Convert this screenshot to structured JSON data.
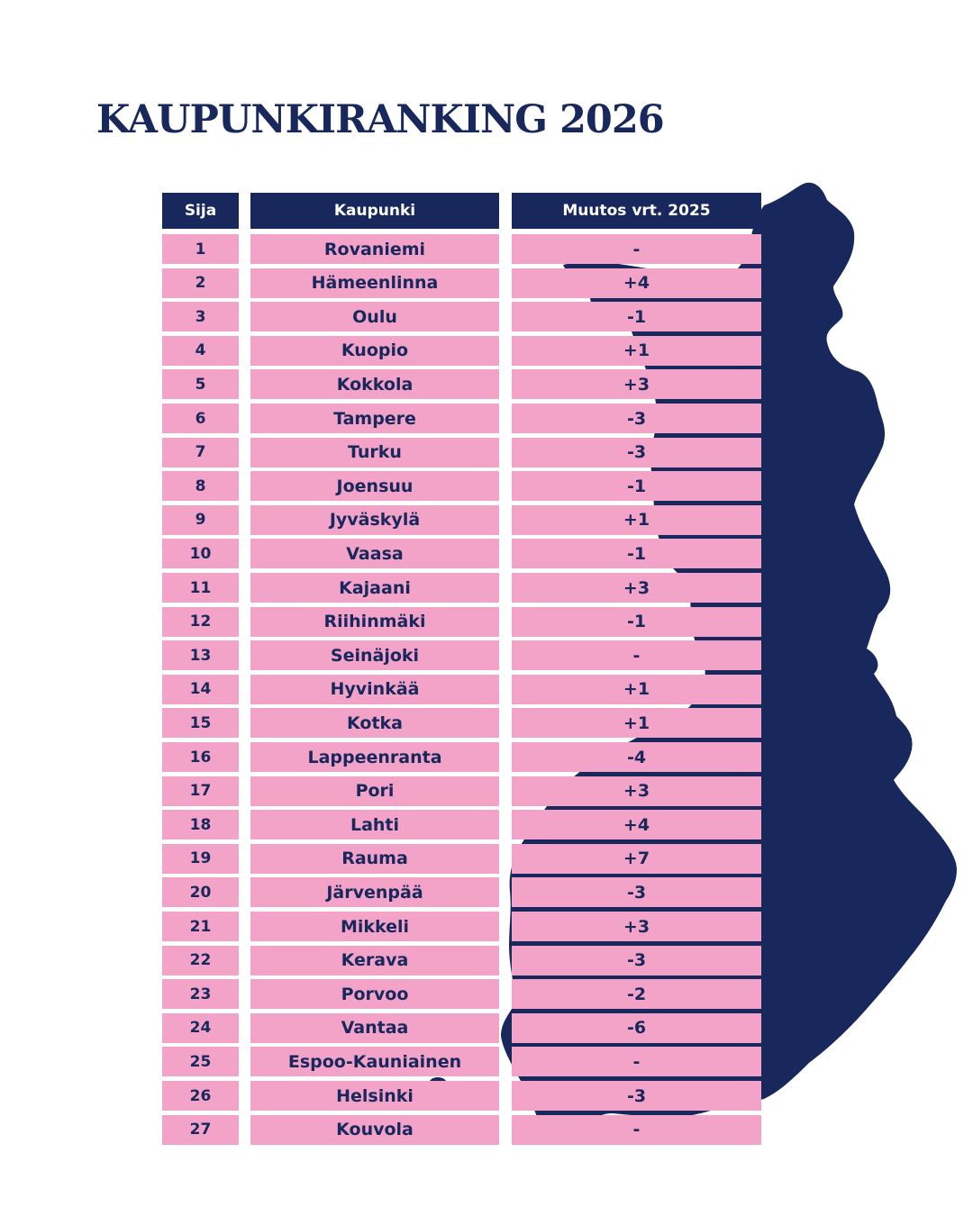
{
  "title": "KAUPUNKIRANKING 2026",
  "colors": {
    "navy": "#19285c",
    "pink": "#f4a3c8",
    "background": "#ffffff"
  },
  "decoration": "finland-map-silhouette",
  "table": {
    "headers": [
      "Sija",
      "Kaupunki",
      "Muutos vrt. 2025"
    ],
    "rows": [
      {
        "rank": "1",
        "city": "Rovaniemi",
        "change": "-"
      },
      {
        "rank": "2",
        "city": "Hämeenlinna",
        "change": "+4"
      },
      {
        "rank": "3",
        "city": "Oulu",
        "change": "-1"
      },
      {
        "rank": "4",
        "city": "Kuopio",
        "change": "+1"
      },
      {
        "rank": "5",
        "city": "Kokkola",
        "change": "+3"
      },
      {
        "rank": "6",
        "city": "Tampere",
        "change": "-3"
      },
      {
        "rank": "7",
        "city": "Turku",
        "change": "-3"
      },
      {
        "rank": "8",
        "city": "Joensuu",
        "change": "-1"
      },
      {
        "rank": "9",
        "city": "Jyväskylä",
        "change": "+1"
      },
      {
        "rank": "10",
        "city": "Vaasa",
        "change": "-1"
      },
      {
        "rank": "11",
        "city": "Kajaani",
        "change": "+3"
      },
      {
        "rank": "12",
        "city": "Riihinmäki",
        "change": "-1"
      },
      {
        "rank": "13",
        "city": "Seinäjoki",
        "change": "-"
      },
      {
        "rank": "14",
        "city": "Hyvinkää",
        "change": "+1"
      },
      {
        "rank": "15",
        "city": "Kotka",
        "change": "+1"
      },
      {
        "rank": "16",
        "city": "Lappeenranta",
        "change": "-4"
      },
      {
        "rank": "17",
        "city": "Pori",
        "change": "+3"
      },
      {
        "rank": "18",
        "city": "Lahti",
        "change": "+4"
      },
      {
        "rank": "19",
        "city": "Rauma",
        "change": "+7"
      },
      {
        "rank": "20",
        "city": "Järvenpää",
        "change": "-3"
      },
      {
        "rank": "21",
        "city": "Mikkeli",
        "change": "+3"
      },
      {
        "rank": "22",
        "city": "Kerava",
        "change": "-3"
      },
      {
        "rank": "23",
        "city": "Porvoo",
        "change": "-2"
      },
      {
        "rank": "24",
        "city": "Vantaa",
        "change": "-6"
      },
      {
        "rank": "25",
        "city": "Espoo-Kauniainen",
        "change": "-"
      },
      {
        "rank": "26",
        "city": "Helsinki",
        "change": "-3"
      },
      {
        "rank": "27",
        "city": "Kouvola",
        "change": "-"
      }
    ]
  }
}
